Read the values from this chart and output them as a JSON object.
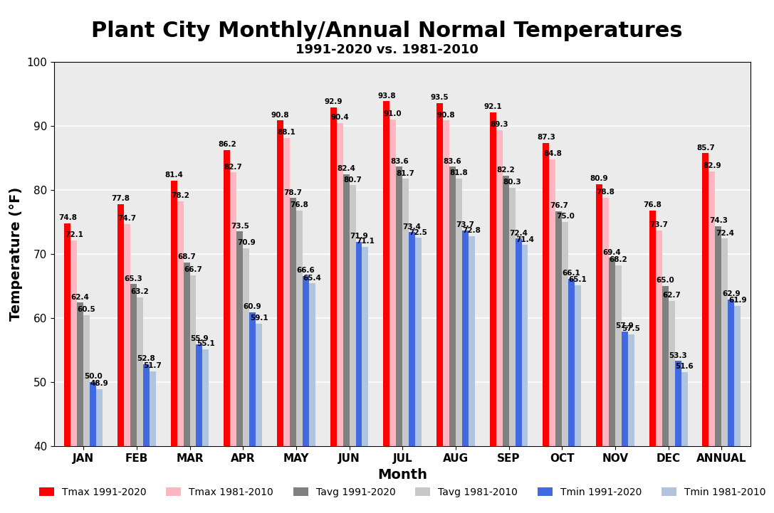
{
  "title": "Plant City Monthly/Annual Normal Temperatures",
  "subtitle": "1991-2020 vs. 1981-2010",
  "xlabel": "Month",
  "ylabel": "Temperature (°F)",
  "months": [
    "JAN",
    "FEB",
    "MAR",
    "APR",
    "MAY",
    "JUN",
    "JUL",
    "AUG",
    "SEP",
    "OCT",
    "NOV",
    "DEC",
    "ANNUAL"
  ],
  "tmax_1991_2020": [
    74.8,
    77.8,
    81.4,
    86.2,
    90.8,
    92.9,
    93.8,
    93.5,
    92.1,
    87.3,
    80.9,
    76.8,
    85.7
  ],
  "tmax_1981_2010": [
    72.1,
    74.7,
    78.2,
    82.7,
    88.1,
    90.4,
    91.0,
    90.8,
    89.3,
    84.8,
    78.8,
    73.7,
    82.9
  ],
  "tavg_1991_2020": [
    62.4,
    65.3,
    68.7,
    73.5,
    78.7,
    82.4,
    83.6,
    83.6,
    82.2,
    76.7,
    69.4,
    65.0,
    74.3
  ],
  "tavg_1981_2010": [
    60.5,
    63.2,
    66.7,
    70.9,
    76.8,
    80.7,
    81.7,
    81.8,
    80.3,
    75.0,
    68.2,
    62.7,
    72.4
  ],
  "tmin_1991_2020": [
    50.0,
    52.8,
    55.9,
    60.9,
    66.6,
    71.9,
    73.4,
    73.7,
    72.4,
    66.1,
    57.9,
    53.3,
    62.9
  ],
  "tmin_1981_2010": [
    48.9,
    51.7,
    55.1,
    59.1,
    65.4,
    71.1,
    72.5,
    72.8,
    71.4,
    65.1,
    57.5,
    51.6,
    61.9
  ],
  "ymin": 40,
  "ymax": 100,
  "yticks": [
    40,
    50,
    60,
    70,
    80,
    90,
    100
  ],
  "bar_width": 0.12,
  "colors": {
    "tmax_1991_2020": "#FF0000",
    "tmax_1981_2010": "#FFB6C1",
    "tavg_1991_2020": "#808080",
    "tavg_1981_2010": "#C8C8C8",
    "tmin_1991_2020": "#4169E1",
    "tmin_1981_2010": "#B0C4DE"
  },
  "legend_labels": [
    "Tmax 1991-2020",
    "Tmax 1981-2010",
    "Tavg 1991-2020",
    "Tavg 1981-2010",
    "Tmin 1991-2020",
    "Tmin 1981-2010"
  ],
  "background_color": "#EBEBEB",
  "title_fontsize": 22,
  "subtitle_fontsize": 13,
  "axis_label_fontsize": 14,
  "tick_fontsize": 11,
  "annotation_fontsize": 7.5
}
